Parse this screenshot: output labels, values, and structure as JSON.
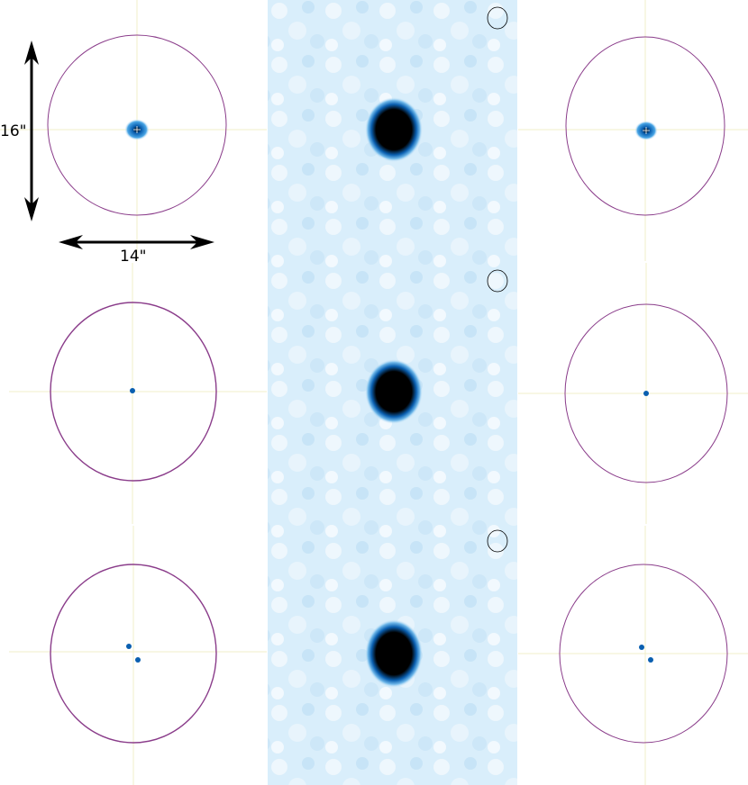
{
  "figure": {
    "scale_bar_vertical_label": "16\"",
    "scale_bar_horizontal_label": "14\"",
    "colors": {
      "aperture_ring": "#8a3c8a",
      "crosshair": "#f2efc8",
      "source_blue": "#0a5fb0",
      "source_core": "#000000",
      "sky_background": "#d6ecfa",
      "arrow": "#000000"
    },
    "rows": [
      {
        "left_sources": 1,
        "center_sources": 1,
        "right_sources": 1
      },
      {
        "left_sources": 1,
        "center_sources": 1,
        "right_sources": 1
      },
      {
        "left_sources": 2,
        "center_sources": 1,
        "right_sources": 2
      }
    ]
  }
}
